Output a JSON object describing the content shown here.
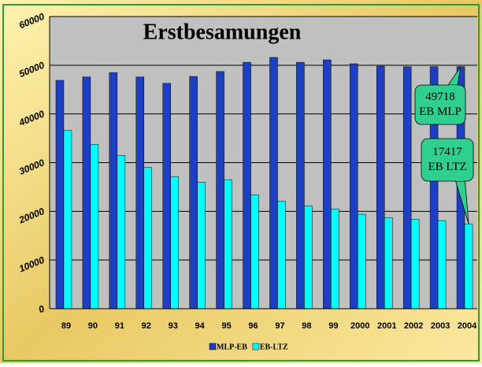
{
  "chart_data": {
    "type": "bar",
    "title": "Erstbesamungen",
    "categories": [
      "89",
      "90",
      "91",
      "92",
      "93",
      "94",
      "95",
      "96",
      "97",
      "98",
      "99",
      "2000",
      "2001",
      "2002",
      "2003",
      "2004"
    ],
    "series": [
      {
        "name": "MLP-EB",
        "color": "#1c3fc4",
        "values": [
          46900,
          47600,
          48500,
          47600,
          46300,
          47700,
          48700,
          50600,
          51600,
          50600,
          51100,
          50300,
          49800,
          49700,
          49700,
          49718
        ]
      },
      {
        "name": "EB-LTZ",
        "color": "#00ffff",
        "values": [
          36600,
          33700,
          31500,
          29000,
          27100,
          26000,
          26500,
          23400,
          22100,
          21100,
          20500,
          19400,
          18700,
          18400,
          18100,
          17417
        ]
      }
    ],
    "ylim": [
      0,
      60000
    ],
    "yticks": [
      0,
      10000,
      20000,
      30000,
      40000,
      50000,
      60000
    ],
    "grid": true,
    "legend": "bottom",
    "annotations": [
      {
        "lines": [
          "49718",
          "EB MLP"
        ],
        "series": 0,
        "point": 15
      },
      {
        "lines": [
          "17417",
          "EB LTZ"
        ],
        "series": 1,
        "point": 15
      }
    ]
  }
}
